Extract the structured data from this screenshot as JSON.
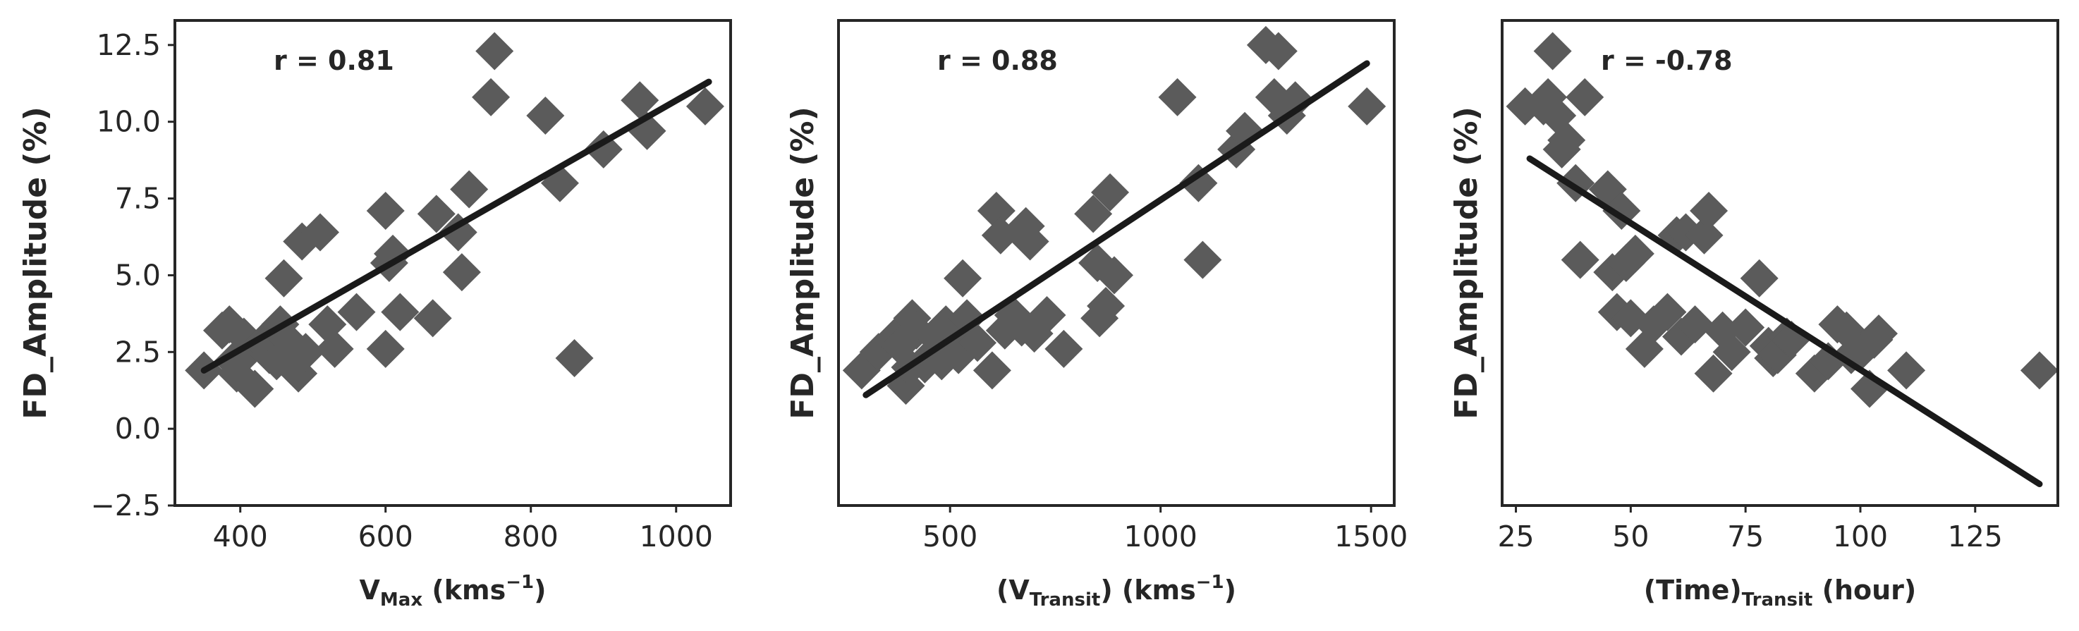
{
  "chart_data": [
    {
      "type": "scatter",
      "annotation": "r = 0.81",
      "ylabel": "FD_Amplitude (%)",
      "xlabel": {
        "base": "V",
        "sub": "Max",
        "rest": " (kms",
        "sup": "−1",
        "end": ")"
      },
      "xlim": [
        310,
        1075
      ],
      "ylim": [
        -2.5,
        13.3
      ],
      "xticks": [
        400,
        600,
        800,
        1000
      ],
      "xtick_labels": [
        "400",
        "600",
        "800",
        "1000"
      ],
      "yticks": [
        -2.5,
        0.0,
        2.5,
        5.0,
        7.5,
        10.0,
        12.5
      ],
      "ytick_labels": [
        "−2.5",
        "0.0",
        "2.5",
        "5.0",
        "7.5",
        "10.0",
        "12.5"
      ],
      "show_yticklabels": true,
      "fit": {
        "x": [
          350,
          1045
        ],
        "y": [
          1.9,
          11.3
        ]
      },
      "points": [
        [
          350,
          1.9
        ],
        [
          375,
          3.2
        ],
        [
          385,
          3.4
        ],
        [
          390,
          2.2
        ],
        [
          395,
          1.8
        ],
        [
          405,
          3.0
        ],
        [
          410,
          2.5
        ],
        [
          420,
          1.3
        ],
        [
          430,
          2.8
        ],
        [
          440,
          2.4
        ],
        [
          445,
          3.0
        ],
        [
          450,
          2.2
        ],
        [
          455,
          3.4
        ],
        [
          460,
          4.9
        ],
        [
          465,
          2.9
        ],
        [
          470,
          2.6
        ],
        [
          480,
          1.8
        ],
        [
          485,
          6.1
        ],
        [
          490,
          2.5
        ],
        [
          510,
          6.4
        ],
        [
          520,
          3.4
        ],
        [
          530,
          2.6
        ],
        [
          560,
          3.8
        ],
        [
          600,
          7.1
        ],
        [
          600,
          2.6
        ],
        [
          605,
          5.4
        ],
        [
          610,
          5.7
        ],
        [
          620,
          3.8
        ],
        [
          665,
          3.6
        ],
        [
          670,
          7.0
        ],
        [
          700,
          6.4
        ],
        [
          705,
          5.1
        ],
        [
          715,
          7.8
        ],
        [
          745,
          10.8
        ],
        [
          750,
          12.3
        ],
        [
          820,
          10.2
        ],
        [
          840,
          8.0
        ],
        [
          860,
          2.3
        ],
        [
          900,
          9.1
        ],
        [
          950,
          10.7
        ],
        [
          960,
          9.7
        ],
        [
          1040,
          10.5
        ]
      ]
    },
    {
      "type": "scatter",
      "annotation": "r = 0.88",
      "ylabel": "FD_Amplitude (%)",
      "xlabel": {
        "base": "(V",
        "sub": "Transit",
        "rest": ") (kms",
        "sup": "−1",
        "end": ")"
      },
      "xlim": [
        235,
        1555
      ],
      "ylim": [
        -2.5,
        13.3
      ],
      "xticks": [
        500,
        1000,
        1500
      ],
      "xtick_labels": [
        "500",
        "1000",
        "1500"
      ],
      "show_yticklabels": false,
      "fit": {
        "x": [
          300,
          1490
        ],
        "y": [
          1.1,
          11.9
        ]
      },
      "points": [
        [
          290,
          1.9
        ],
        [
          330,
          2.5
        ],
        [
          370,
          3.0
        ],
        [
          380,
          2.7
        ],
        [
          395,
          1.4
        ],
        [
          405,
          2.0
        ],
        [
          410,
          3.6
        ],
        [
          420,
          3.2
        ],
        [
          440,
          2.1
        ],
        [
          455,
          2.4
        ],
        [
          470,
          2.9
        ],
        [
          480,
          2.2
        ],
        [
          490,
          3.4
        ],
        [
          510,
          2.7
        ],
        [
          520,
          2.4
        ],
        [
          530,
          4.9
        ],
        [
          540,
          3.6
        ],
        [
          550,
          3.0
        ],
        [
          565,
          2.8
        ],
        [
          600,
          1.9
        ],
        [
          610,
          7.1
        ],
        [
          620,
          6.3
        ],
        [
          630,
          3.2
        ],
        [
          650,
          3.7
        ],
        [
          670,
          3.3
        ],
        [
          680,
          6.6
        ],
        [
          690,
          6.1
        ],
        [
          700,
          3.1
        ],
        [
          730,
          3.7
        ],
        [
          770,
          2.6
        ],
        [
          840,
          7.0
        ],
        [
          850,
          5.4
        ],
        [
          855,
          3.6
        ],
        [
          870,
          4.0
        ],
        [
          880,
          7.7
        ],
        [
          890,
          5.0
        ],
        [
          1040,
          10.8
        ],
        [
          1090,
          8.0
        ],
        [
          1100,
          5.5
        ],
        [
          1180,
          9.1
        ],
        [
          1200,
          9.7
        ],
        [
          1250,
          12.5
        ],
        [
          1270,
          10.8
        ],
        [
          1280,
          12.3
        ],
        [
          1300,
          10.2
        ],
        [
          1320,
          10.7
        ],
        [
          1490,
          10.5
        ]
      ]
    },
    {
      "type": "scatter",
      "annotation": "r = -0.78",
      "ylabel": "FD_Amplitude (%)",
      "xlabel": {
        "base": "(Time)",
        "sub": "Transit",
        "rest": " (hour)",
        "sup": "",
        "end": ""
      },
      "xlim": [
        22,
        143
      ],
      "ylim": [
        -2.5,
        13.3
      ],
      "xticks": [
        25,
        50,
        75,
        100,
        125
      ],
      "xtick_labels": [
        "25",
        "50",
        "75",
        "100",
        "125"
      ],
      "show_yticklabels": false,
      "fit": {
        "x": [
          28,
          139
        ],
        "y": [
          8.8,
          -1.8
        ]
      },
      "points": [
        [
          27,
          10.5
        ],
        [
          31,
          10.5
        ],
        [
          32,
          10.8
        ],
        [
          33,
          12.3
        ],
        [
          34,
          10.2
        ],
        [
          35,
          9.1
        ],
        [
          36,
          9.4
        ],
        [
          38,
          8.0
        ],
        [
          39,
          5.5
        ],
        [
          40,
          10.8
        ],
        [
          45,
          7.8
        ],
        [
          46,
          5.1
        ],
        [
          47,
          3.8
        ],
        [
          48,
          7.1
        ],
        [
          49,
          5.4
        ],
        [
          50,
          3.6
        ],
        [
          51,
          5.7
        ],
        [
          53,
          2.6
        ],
        [
          55,
          3.4
        ],
        [
          58,
          3.8
        ],
        [
          60,
          6.3
        ],
        [
          61,
          3.0
        ],
        [
          62,
          6.4
        ],
        [
          64,
          3.4
        ],
        [
          66,
          6.3
        ],
        [
          67,
          7.1
        ],
        [
          68,
          1.8
        ],
        [
          70,
          3.2
        ],
        [
          72,
          2.5
        ],
        [
          75,
          3.3
        ],
        [
          78,
          4.9
        ],
        [
          80,
          2.7
        ],
        [
          81,
          2.3
        ],
        [
          82,
          2.4
        ],
        [
          84,
          3.0
        ],
        [
          85,
          2.9
        ],
        [
          90,
          1.8
        ],
        [
          93,
          2.2
        ],
        [
          95,
          3.4
        ],
        [
          97,
          3.2
        ],
        [
          98,
          2.4
        ],
        [
          100,
          2.5
        ],
        [
          102,
          1.3
        ],
        [
          103,
          2.9
        ],
        [
          104,
          3.1
        ],
        [
          110,
          1.9
        ],
        [
          139,
          1.9
        ]
      ]
    }
  ]
}
